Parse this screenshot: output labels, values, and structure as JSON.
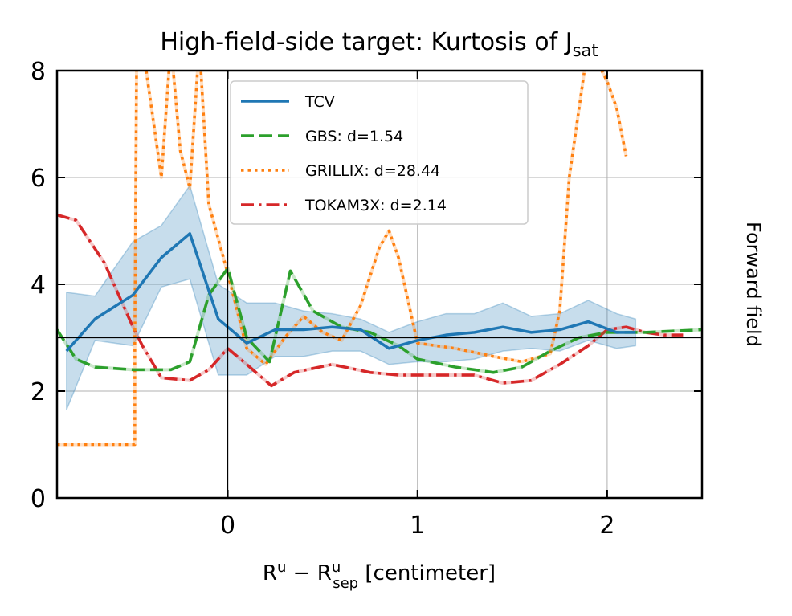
{
  "chart_data": {
    "type": "line",
    "title": "High-field-side target: Kurtosis of J",
    "title_sub": "sat",
    "xlabel_base": "R",
    "xlabel_sup1": "u",
    "xlabel_minus": " − R",
    "xlabel_sup2": "u",
    "xlabel_sub2": "sep",
    "xlabel_rest": " [centimeter]",
    "side_label": "Forward field",
    "xlim": [
      -0.9,
      2.5
    ],
    "ylim": [
      0,
      8
    ],
    "xticks": [
      0,
      1,
      2
    ],
    "xtick_labels": [
      "0",
      "1",
      "2"
    ],
    "yticks": [
      0,
      2,
      4,
      6,
      8
    ],
    "ytick_labels": [
      "0",
      "2",
      "4",
      "6",
      "8"
    ],
    "grid": true,
    "reference_lines": {
      "x": 0,
      "y": 3
    },
    "legend_position": "top-center",
    "series": [
      {
        "name": "TCV",
        "color": "#1f77b4",
        "style": "solid",
        "x": [
          -0.85,
          -0.7,
          -0.5,
          -0.35,
          -0.2,
          -0.05,
          0.1,
          0.25,
          0.4,
          0.55,
          0.7,
          0.85,
          1.0,
          1.15,
          1.3,
          1.45,
          1.6,
          1.75,
          1.9,
          2.05,
          2.15
        ],
        "y": [
          2.75,
          3.35,
          3.8,
          4.5,
          4.95,
          3.35,
          2.9,
          3.15,
          3.15,
          3.2,
          3.15,
          2.8,
          2.95,
          3.05,
          3.1,
          3.2,
          3.1,
          3.15,
          3.3,
          3.1,
          3.1
        ],
        "band_upper": [
          3.85,
          3.78,
          4.8,
          5.1,
          5.85,
          4.0,
          3.65,
          3.65,
          3.5,
          3.45,
          3.35,
          3.1,
          3.3,
          3.45,
          3.45,
          3.65,
          3.4,
          3.45,
          3.7,
          3.45,
          3.35
        ],
        "band_lower": [
          1.65,
          2.95,
          2.85,
          3.95,
          4.1,
          2.3,
          2.3,
          2.65,
          2.65,
          2.75,
          2.75,
          2.5,
          2.55,
          2.55,
          2.6,
          2.75,
          2.8,
          2.75,
          2.95,
          2.8,
          2.85
        ]
      },
      {
        "name": "GBS: d=1.54",
        "color": "#2ca02c",
        "style": "dashed",
        "x": [
          -0.9,
          -0.8,
          -0.7,
          -0.5,
          -0.3,
          -0.2,
          -0.1,
          0.0,
          0.1,
          0.22,
          0.33,
          0.45,
          0.6,
          0.75,
          0.9,
          1.0,
          1.2,
          1.4,
          1.55,
          1.7,
          1.85,
          2.0,
          2.2,
          2.5
        ],
        "y": [
          3.15,
          2.6,
          2.45,
          2.4,
          2.4,
          2.55,
          3.8,
          4.3,
          3.0,
          2.55,
          4.25,
          3.5,
          3.2,
          3.1,
          2.85,
          2.6,
          2.45,
          2.35,
          2.45,
          2.75,
          3.0,
          3.1,
          3.1,
          3.15
        ]
      },
      {
        "name": "GRILLIX: d=28.44",
        "color": "#ff7f0e",
        "style": "dotted",
        "x": [
          -0.9,
          -0.49,
          -0.49,
          -0.48,
          -0.5,
          -0.45,
          -0.35,
          -0.3,
          -0.25,
          -0.2,
          -0.15,
          -0.1,
          0.0,
          0.1,
          0.2,
          0.3,
          0.4,
          0.5,
          0.6,
          0.7,
          0.8,
          0.85,
          0.9,
          1.0,
          1.2,
          1.4,
          1.55,
          1.7,
          1.75,
          1.8,
          1.9,
          2.0,
          2.05,
          2.1
        ],
        "y": [
          1.0,
          1.0,
          3.0,
          8.5,
          8.5,
          8.5,
          6.0,
          8.5,
          6.5,
          5.8,
          8.5,
          5.5,
          4.2,
          2.8,
          2.5,
          3.0,
          3.4,
          3.1,
          2.95,
          3.6,
          4.7,
          5.0,
          4.5,
          2.9,
          2.8,
          2.65,
          2.55,
          2.7,
          3.5,
          6.0,
          8.5,
          7.8,
          7.3,
          6.4
        ]
      },
      {
        "name": "TOKAM3X: d=2.14",
        "color": "#d62728",
        "style": "dashdot",
        "x": [
          -0.9,
          -0.8,
          -0.65,
          -0.5,
          -0.45,
          -0.35,
          -0.2,
          -0.1,
          0.0,
          0.1,
          0.23,
          0.35,
          0.55,
          0.75,
          0.9,
          1.0,
          1.15,
          1.3,
          1.45,
          1.6,
          1.75,
          1.9,
          2.0,
          2.1,
          2.2,
          2.3,
          2.4
        ],
        "y": [
          5.3,
          5.2,
          4.4,
          3.2,
          2.85,
          2.25,
          2.2,
          2.4,
          2.8,
          2.5,
          2.1,
          2.35,
          2.5,
          2.35,
          2.3,
          2.3,
          2.3,
          2.3,
          2.15,
          2.2,
          2.5,
          2.85,
          3.15,
          3.2,
          3.1,
          3.05,
          3.05
        ]
      }
    ]
  }
}
